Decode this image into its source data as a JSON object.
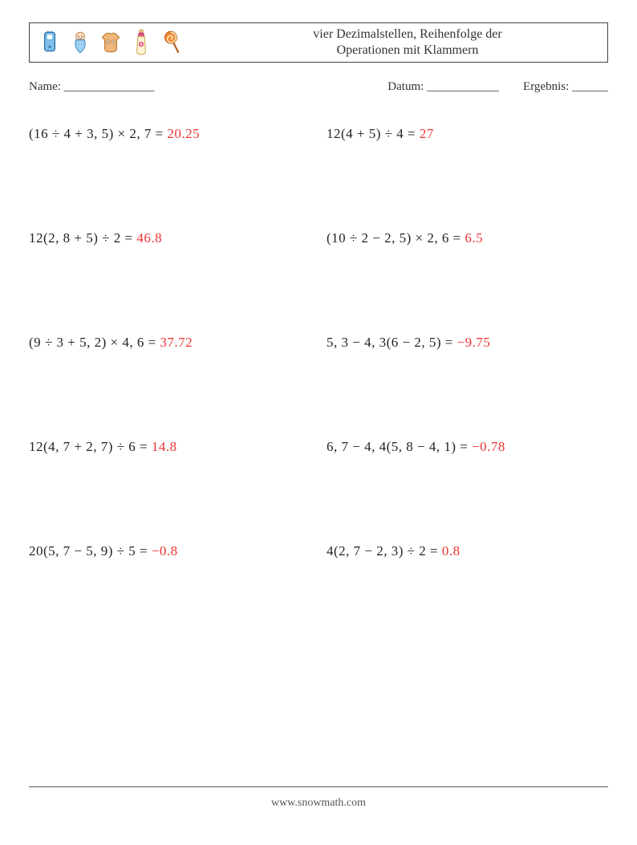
{
  "title_line1": "vier Dezimalstellen, Reihenfolge der",
  "title_line2": "Operationen mit Klammern",
  "meta": {
    "name_label": "Name: _______________",
    "date_label": "Datum: ____________",
    "result_label": "Ergebnis: ______"
  },
  "icons": [
    {
      "name": "phone-icon"
    },
    {
      "name": "baby-swaddle-icon"
    },
    {
      "name": "baby-onesie-icon"
    },
    {
      "name": "bottle-icon"
    },
    {
      "name": "lollipop-icon"
    }
  ],
  "problems": [
    {
      "expr": "(16 ÷ 4 + 3, 5) × 2, 7 = ",
      "ans": "20.25"
    },
    {
      "expr": "12(4 + 5) ÷ 4 = ",
      "ans": "27"
    },
    {
      "expr": "12(2, 8 + 5) ÷ 2 = ",
      "ans": "46.8"
    },
    {
      "expr": "(10 ÷ 2 − 2, 5) × 2, 6 = ",
      "ans": "6.5"
    },
    {
      "expr": "(9 ÷ 3 + 5, 2) × 4, 6 = ",
      "ans": "37.72"
    },
    {
      "expr": "5, 3 − 4, 3(6 − 2, 5) = ",
      "ans": "−9.75"
    },
    {
      "expr": "12(4, 7 + 2, 7) ÷ 6 = ",
      "ans": "14.8"
    },
    {
      "expr": "6, 7 − 4, 4(5, 8 − 4, 1) = ",
      "ans": "−0.78"
    },
    {
      "expr": "20(5, 7 − 5, 9) ÷ 5 = ",
      "ans": "−0.8"
    },
    {
      "expr": "4(2, 7 − 2, 3) ÷ 2 = ",
      "ans": "0.8"
    }
  ],
  "footer": "www.snowmath.com",
  "icon_svgs": {
    "phone-icon": "<svg viewBox='0 0 24 30' width='26' height='32'><rect x='6' y='3' width='12' height='22' rx='3' fill='#7fbfe8' stroke='#2a6ea8' stroke-width='1.2'/><rect x='9' y='6' width='6' height='5' rx='1' fill='#fff'/><circle cx='12' cy='20' r='1.4' fill='#2a6ea8'/><line x1='10' y1='1.5' x2='10' y2='3' stroke='#2a6ea8'/><line x1='14' y1='1.5' x2='14' y2='3' stroke='#2a6ea8'/></svg>",
    "baby-swaddle-icon": "<svg viewBox='0 0 24 30' width='26' height='32'><ellipse cx='12' cy='8' rx='5' ry='5' fill='#fce3c7' stroke='#c08a55'/><path d='M7 12 Q4 20 12 27 Q20 20 17 12 Z' fill='#9ed0f2' stroke='#4a8ec2'/><circle cx='10' cy='8' r='0.7' fill='#5a3a1a'/><circle cx='14' cy='8' r='0.7' fill='#5a3a1a'/><path d='M10 10 Q12 11.5 14 10' stroke='#b06a3a' fill='none'/></svg>",
    "baby-onesie-icon": "<svg viewBox='0 0 28 30' width='30' height='32'><path d='M8 5 L4 9 L7 12 L7 22 Q7 26 14 26 Q21 26 21 22 L21 12 L24 9 L20 5 Q17 3 14 5 Q11 3 8 5 Z' fill='#f0b77a' stroke='#b57831' stroke-width='1'/><circle cx='11' cy='14' r='2' fill='#fff' stroke='#b57831' stroke-width='0.8'/><circle cx='17' cy='14' r='2' fill='#fff' stroke='#b57831' stroke-width='0.8'/><circle cx='11' cy='14' r='0.7' fill='#5a3a1a'/><circle cx='17' cy='14' r='0.7' fill='#5a3a1a'/></svg>",
    "bottle-icon": "<svg viewBox='0 0 20 32' width='22' height='34'><path d='M8 2 Q10 0 12 2 L12 5 L8 5 Z' fill='#f5c98e' stroke='#c98a3a'/><rect x='7' y='5' width='6' height='4' rx='1.5' fill='#e95a8e' stroke='#b92a5e'/><path d='M6 9 L14 9 L15 26 Q15 30 10 30 Q5 30 5 26 Z' fill='#fff4d6' stroke='#c9a851'/><circle cx='10' cy='18' r='3' fill='#e95a8e'/><circle cx='10' cy='18' r='1.2' fill='#fff4d6'/></svg>",
    "lollipop-icon": "<svg viewBox='0 0 24 32' width='26' height='34'><circle cx='11' cy='10' r='7' fill='#f08a3a' stroke='#b55a1a'/><path d='M11 4 A6 6 0 0 1 11 16 A4 4 0 0 1 11 8 A2 2 0 0 1 11 12' fill='none' stroke='#fff0c0' stroke-width='1.4'/><line x1='14' y1='16' x2='20' y2='28' stroke='#b55a1a' stroke-width='2'/></svg>"
  }
}
